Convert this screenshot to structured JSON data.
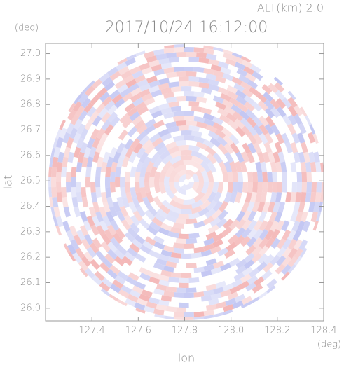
{
  "chart_data": {
    "type": "radar-ppi",
    "title": "2017/10/24 16:12:00",
    "altitude_label": "ALT(km) 2.0",
    "x_label": "lon",
    "y_label": "lat",
    "x_unit": "(deg)",
    "y_unit": "(deg)",
    "xlim": [
      127.2,
      128.4
    ],
    "ylim": [
      25.95,
      27.04
    ],
    "xticks": [
      127.4,
      127.6,
      127.8,
      {
        "value": 128.0,
        "label": "128.0"
      },
      128.2,
      128.4
    ],
    "yticks": [
      {
        "value": 26.0,
        "label": "26.0"
      },
      26.1,
      26.2,
      26.3,
      26.4,
      26.5,
      26.6,
      26.7,
      26.8,
      26.9,
      {
        "value": 27.0,
        "label": "27.0"
      }
    ]
  }
}
